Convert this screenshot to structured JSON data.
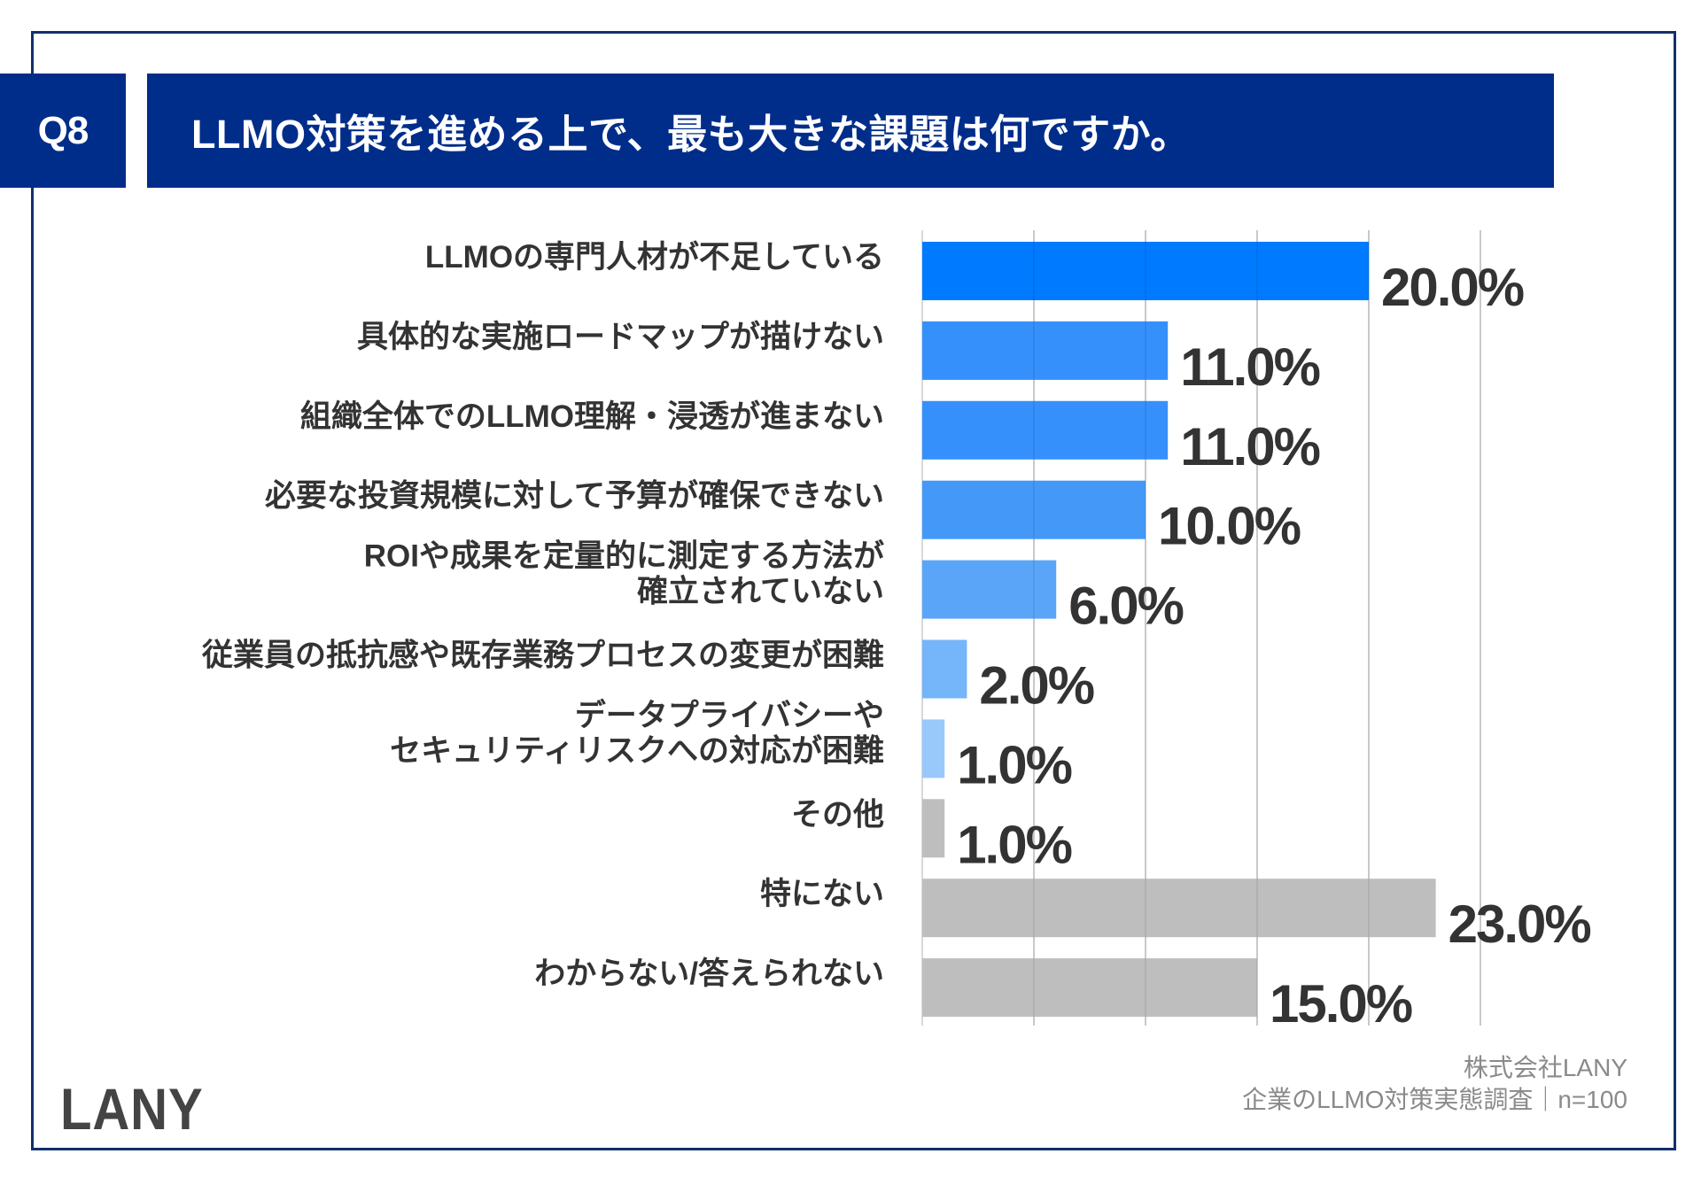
{
  "header": {
    "question_number": "Q8",
    "title": "LLMO対策を進める上で、最も大きな課題は何ですか。"
  },
  "footer": {
    "logo": "LANY",
    "source_line1": "株式会社LANY",
    "source_line2": "企業のLLMO対策実態調査｜n=100"
  },
  "colors": {
    "frame": "#10306a",
    "header_bg": "#002d8a",
    "gridline": "#d9d9d9",
    "label_text": "#333333"
  },
  "chart_data": {
    "type": "bar",
    "orientation": "horizontal",
    "title": "LLMO対策を進める上で、最も大きな課題は何ですか。",
    "xlabel": "",
    "ylabel": "",
    "xlim": [
      0,
      25
    ],
    "grid": true,
    "grid_step": 5,
    "unit": "%",
    "categories": [
      [
        "LLMOの専門人材が不足している"
      ],
      [
        "具体的な実施ロードマップが描けない"
      ],
      [
        "組織全体でのLLMO理解・浸透が進まない"
      ],
      [
        "必要な投資規模に対して予算が確保できない"
      ],
      [
        "ROIや成果を定量的に測定する方法が",
        "確立されていない"
      ],
      [
        "従業員の抵抗感や既存業務プロセスの変更が困難"
      ],
      [
        "データプライバシーや",
        "セキュリティリスクへの対応が困難"
      ],
      [
        "その他"
      ],
      [
        "特にない"
      ],
      [
        "わからない/答えられない"
      ]
    ],
    "values": [
      20.0,
      11.0,
      11.0,
      10.0,
      6.0,
      2.0,
      1.0,
      1.0,
      23.0,
      15.0
    ],
    "value_labels": [
      "20.0%",
      "11.0%",
      "11.0%",
      "10.0%",
      "6.0%",
      "2.0%",
      "1.0%",
      "1.0%",
      "23.0%",
      "15.0%"
    ],
    "bar_colors": [
      "#007aff",
      "#3590fc",
      "#3590fc",
      "#4499f8",
      "#5aa5f8",
      "#75b5fa",
      "#99c8fb",
      "#bebebe",
      "#bebebe",
      "#bebebe"
    ]
  }
}
